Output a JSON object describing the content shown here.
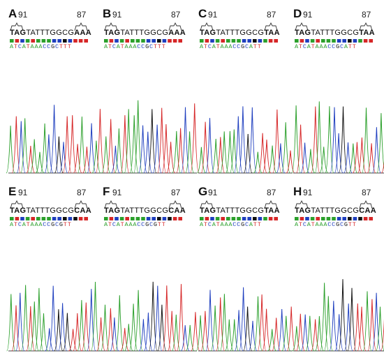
{
  "panels": [
    {
      "letter": "A",
      "left_num": "91",
      "right_num": "87",
      "seq_bold_start": "TAG",
      "seq_mid": "TATTTGGCG",
      "seq_bold_end": "AAA",
      "calls": "ATCATAAACCGCTTT"
    },
    {
      "letter": "B",
      "left_num": "91",
      "right_num": "87",
      "seq_bold_start": "TAG",
      "seq_mid": "TATTTGGCG",
      "seq_bold_end": "AAA",
      "calls": "ATCATAAACCGCTTT"
    },
    {
      "letter": "C",
      "left_num": "91",
      "right_num": "87",
      "seq_bold_start": "TAG",
      "seq_mid": "TATTTGGCG",
      "seq_bold_end": "TAA",
      "calls": "ATCATAAACCGCATT"
    },
    {
      "letter": "D",
      "left_num": "91",
      "right_num": "87",
      "seq_bold_start": "TAG",
      "seq_mid": "TATTTGGCG",
      "seq_bold_end": "TAA",
      "calls": "ATCATAAACCGCATT"
    },
    {
      "letter": "E",
      "left_num": "91",
      "right_num": "87",
      "seq_bold_start": "TAG",
      "seq_mid": "TATTTGGCG",
      "seq_bold_end": "CAA",
      "calls": "ATCATAAACCGCGTT"
    },
    {
      "letter": "F",
      "left_num": "91",
      "right_num": "87",
      "seq_bold_start": "TAG",
      "seq_mid": "TATTTGGCG",
      "seq_bold_end": "CAA",
      "calls": "ATCATAAACCGCGTT"
    },
    {
      "letter": "G",
      "left_num": "91",
      "right_num": "87",
      "seq_bold_start": "TAG",
      "seq_mid": "TATTTGGCG",
      "seq_bold_end": "TAA",
      "calls": "ATCATAAACCGCATT"
    },
    {
      "letter": "H",
      "left_num": "91",
      "right_num": "87",
      "seq_bold_start": "TAG",
      "seq_mid": "TATTTGGCG",
      "seq_bold_end": "CAA",
      "calls": "ATCATAAACCGCGTT"
    }
  ],
  "base_colors": {
    "A": "#2ca02c",
    "T": "#d62728",
    "C": "#1f3fbf",
    "G": "#111111"
  }
}
